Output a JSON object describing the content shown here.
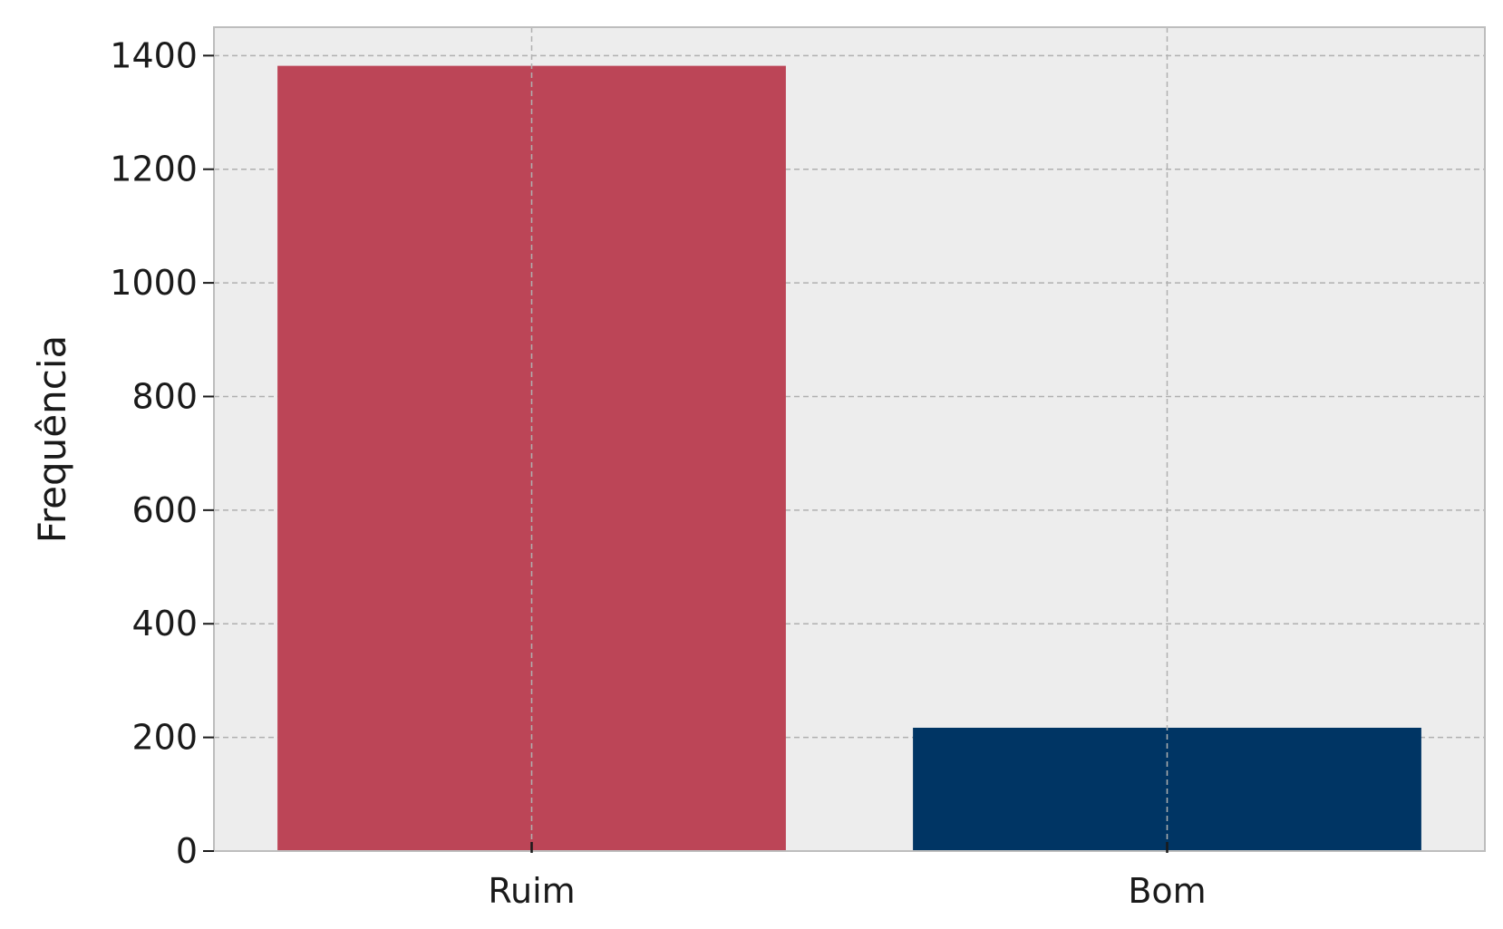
{
  "chart_data": {
    "type": "bar",
    "categories": [
      "Ruim",
      "Bom"
    ],
    "values": [
      1382,
      217
    ],
    "bar_colors": [
      "#BC4557",
      "#003564"
    ],
    "xlabel": "",
    "ylabel": "Frequência",
    "ylim": [
      0,
      1450
    ],
    "yticks": [
      0,
      200,
      400,
      600,
      800,
      1000,
      1200,
      1400
    ],
    "grid": true,
    "background": "#EDEDED"
  }
}
